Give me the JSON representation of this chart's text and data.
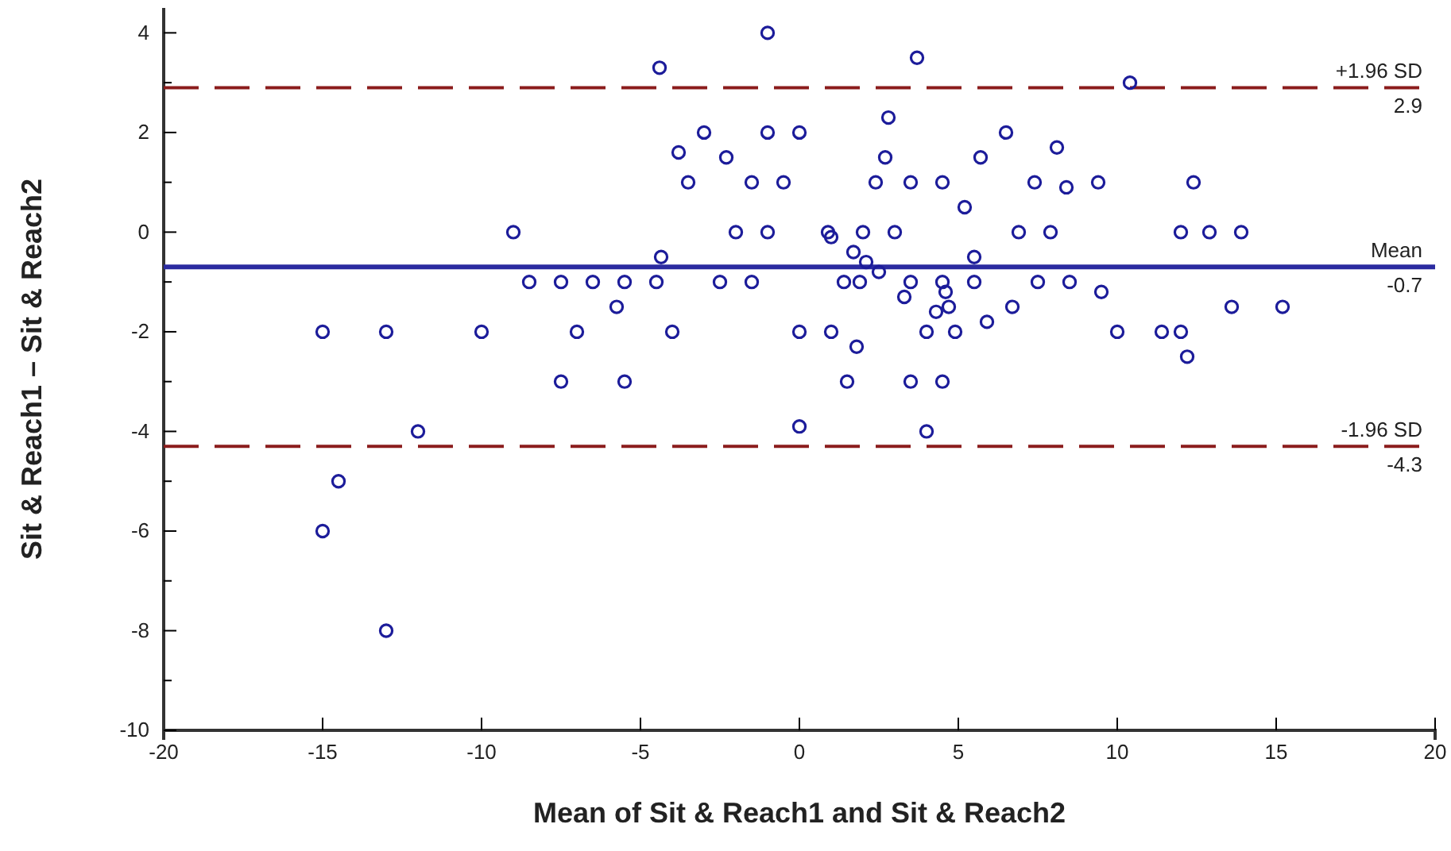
{
  "chart_data": {
    "type": "scatter",
    "xlabel": "Mean of Sit & Reach1 and Sit & Reach2",
    "ylabel": "Sit & Reach1 – Sit & Reach2",
    "xlim": [
      -20,
      20
    ],
    "xticks": [
      -20,
      -15,
      -10,
      -5,
      0,
      5,
      10,
      15,
      20
    ],
    "ylim": [
      -10,
      4.5
    ],
    "yticks": [
      4,
      {
        "value": 3,
        "label": null
      },
      2,
      {
        "value": 1,
        "label": null
      },
      0,
      {
        "value": -1,
        "label": null
      },
      -2,
      {
        "value": -3,
        "label": null
      },
      -4,
      {
        "value": -5,
        "label": null
      },
      -6,
      {
        "value": -7,
        "label": null
      },
      -8,
      {
        "value": -9,
        "label": null
      },
      -10
    ],
    "marker": "circle",
    "grid": false,
    "annotations": [
      {
        "text": "2.9",
        "y": 2.9
      },
      {
        "text": "-0.7",
        "y": -0.7
      },
      {
        "text": "-4.3",
        "y": -4.3
      }
    ],
    "series": [
      {
        "color": "#1c1c9a",
        "x": [
          -15,
          -13,
          -10,
          -9,
          -8.5,
          -7.5,
          -7.5,
          -7,
          -6.5,
          -5.75,
          -5.5,
          -5.5,
          -12,
          -14.5,
          -15,
          -13,
          -4.5,
          -4.35,
          -4.4,
          -4,
          -3.8,
          -3.5,
          -3,
          -2.5,
          -2.3,
          -2,
          -1.5,
          -1.5,
          -1,
          -1,
          -1,
          -0.5,
          0,
          0,
          0,
          0.9,
          1,
          1,
          1.4,
          1.5,
          1.7,
          1.8,
          1.9,
          2,
          2.1,
          2.5,
          2.4,
          2.7,
          2.8,
          3,
          3.3,
          3.5,
          3.5,
          3.5,
          3.7,
          4,
          4,
          4.5,
          4.5,
          4.5,
          4.6,
          4.7,
          4.3,
          4.9,
          5.2,
          5.5,
          5.5,
          5.9,
          5.7,
          6.5,
          6.7,
          6.9,
          7.4,
          7.5,
          7.9,
          8.1,
          8.4,
          8.5,
          9.4,
          9.5,
          10,
          10.4,
          11.4,
          12,
          12,
          12.2,
          12.4,
          12.9,
          13.6,
          13.9,
          15.2
        ],
        "values": [
          -2,
          -2,
          -2,
          0,
          -1,
          -1,
          -3,
          -2,
          -1,
          -1.5,
          -1,
          -3,
          -4,
          -5,
          -6,
          -8,
          -1,
          -0.5,
          3.3,
          -2,
          1.6,
          1,
          2,
          -1,
          1.5,
          0,
          1,
          -1,
          0,
          2,
          4,
          1,
          2,
          -2,
          -3.9,
          0,
          -0.1,
          -2,
          -1,
          -3,
          -0.4,
          -2.3,
          -1,
          0,
          -0.6,
          -0.8,
          1,
          1.5,
          2.3,
          0,
          -1.3,
          -1,
          -3,
          1,
          3.5,
          -4,
          -2,
          1,
          -1,
          -3,
          -1.2,
          -1.5,
          -1.6,
          -2,
          0.5,
          -0.5,
          -1,
          -1.8,
          1.5,
          2,
          -1.5,
          0,
          1,
          -1,
          0,
          1.7,
          0.9,
          -1,
          1,
          -1.2,
          -2,
          3,
          -2,
          -2,
          0,
          -2.5,
          1,
          0,
          -1.5,
          0,
          -1.5
        ]
      }
    ],
    "ref_lines": [
      {
        "axis": "y",
        "value": 2.9,
        "label": "+1.96 SD",
        "color": "#8b1c1c",
        "line_style": "dashed"
      },
      {
        "axis": "y",
        "value": -0.7,
        "label": "Mean",
        "color": "#2b2ba0",
        "line_style": "solid"
      },
      {
        "axis": "y",
        "value": -4.3,
        "label": "-1.96 SD",
        "color": "#8b1c1c",
        "line_style": "dashed"
      }
    ]
  }
}
